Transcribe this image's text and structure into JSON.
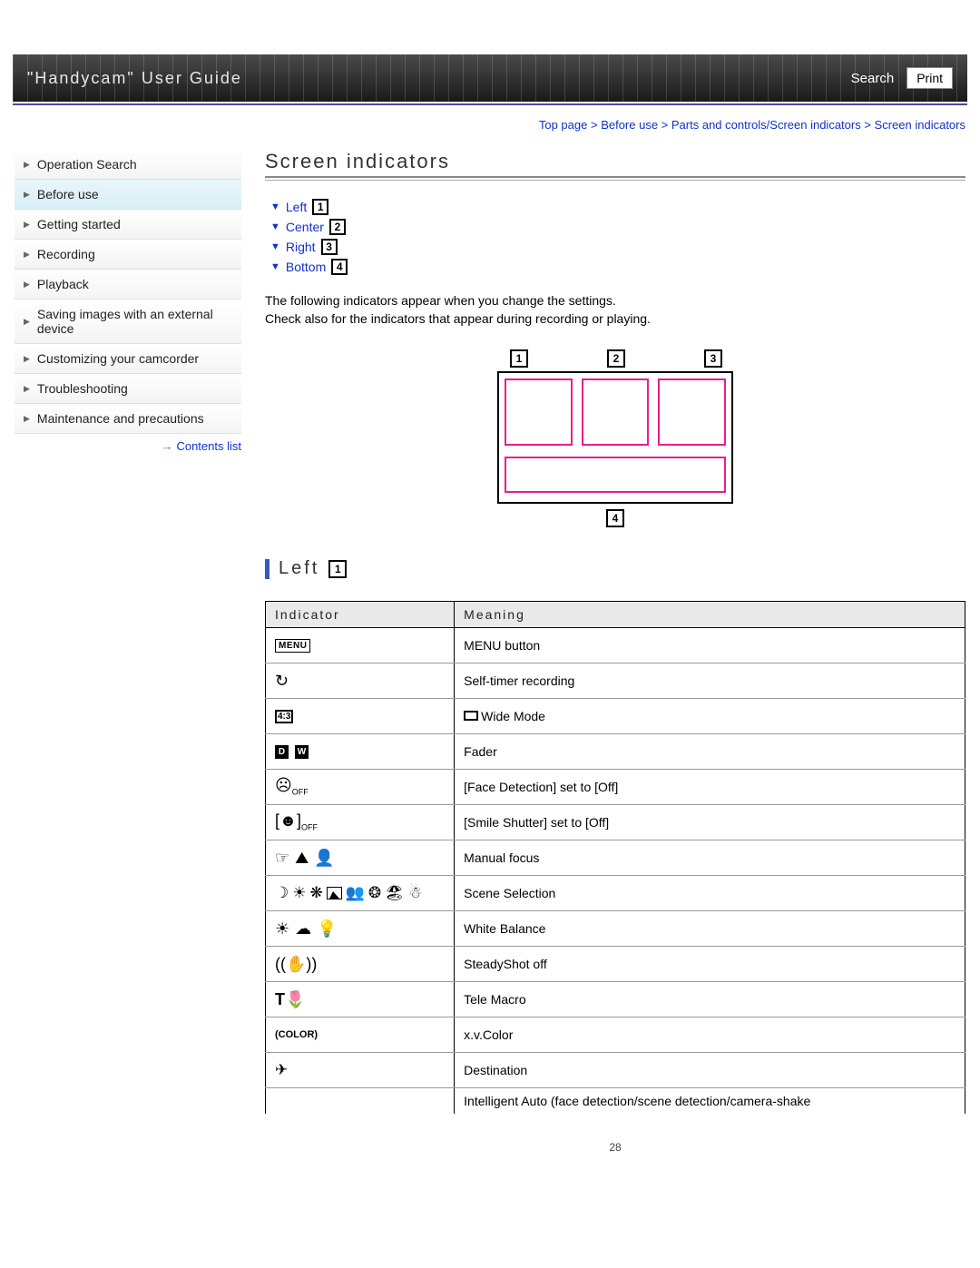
{
  "header": {
    "title": "\"Handycam\" User Guide",
    "search": "Search",
    "print": "Print"
  },
  "breadcrumb": {
    "p1": "Top page",
    "p2": "Before use",
    "p3": "Parts and controls/Screen indicators",
    "p4": "Screen indicators"
  },
  "sidebar": {
    "items": [
      "Operation Search",
      "Before use",
      "Getting started",
      "Recording",
      "Playback",
      "Saving images with an external device",
      "Customizing your camcorder",
      "Troubleshooting",
      "Maintenance and precautions"
    ],
    "active_index": 1,
    "contents": "Contents list"
  },
  "page": {
    "title": "Screen indicators",
    "anchors": [
      {
        "label": "Left",
        "num": "1"
      },
      {
        "label": "Center",
        "num": "2"
      },
      {
        "label": "Right",
        "num": "3"
      },
      {
        "label": "Bottom",
        "num": "4"
      }
    ],
    "intro1": "The following indicators appear when you change the settings.",
    "intro2": "Check also for the indicators that appear during recording or playing.",
    "diagram": {
      "n1": "1",
      "n2": "2",
      "n3": "3",
      "n4": "4"
    },
    "section_left": {
      "label": "Left",
      "num": "1"
    }
  },
  "table": {
    "col_indicator": "Indicator",
    "col_meaning": "Meaning",
    "rows": [
      {
        "icon": "menu",
        "meaning": "MENU button"
      },
      {
        "icon": "selftimer",
        "meaning": "Self-timer recording"
      },
      {
        "icon": "ratio43",
        "meaning": "Wide Mode",
        "prefix_icon": "wide"
      },
      {
        "icon": "fader",
        "meaning": "Fader"
      },
      {
        "icon": "faceoff",
        "meaning": "[Face Detection] set to [Off]"
      },
      {
        "icon": "smileoff",
        "meaning": "[Smile Shutter] set to [Off]"
      },
      {
        "icon": "manualfocus",
        "meaning": "Manual focus"
      },
      {
        "icon": "scene",
        "meaning": "Scene Selection"
      },
      {
        "icon": "whitebalance",
        "meaning": "White Balance"
      },
      {
        "icon": "steadyshot",
        "meaning": "SteadyShot off"
      },
      {
        "icon": "telemacro",
        "meaning": "Tele Macro"
      },
      {
        "icon": "xvcolor",
        "meaning": "x.v.Color"
      },
      {
        "icon": "destination",
        "meaning": "Destination"
      },
      {
        "icon": "",
        "meaning": "Intelligent Auto (face detection/scene detection/camera-shake"
      }
    ],
    "icon_text": {
      "menu": "MENU",
      "ratio43": "4:3",
      "off": "OFF",
      "color": "(COLOR)",
      "t": "T"
    }
  },
  "pagenum": "28"
}
